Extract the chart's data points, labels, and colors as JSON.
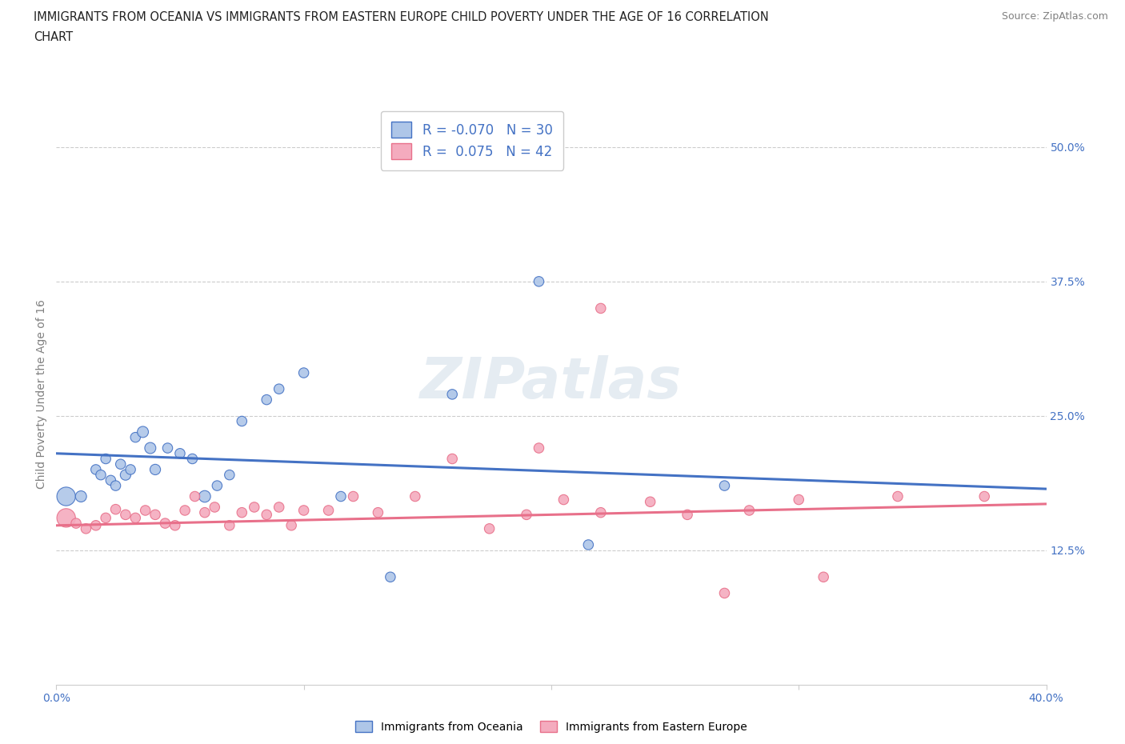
{
  "title_line1": "IMMIGRANTS FROM OCEANIA VS IMMIGRANTS FROM EASTERN EUROPE CHILD POVERTY UNDER THE AGE OF 16 CORRELATION",
  "title_line2": "CHART",
  "source": "Source: ZipAtlas.com",
  "ylabel": "Child Poverty Under the Age of 16",
  "xlim": [
    0.0,
    0.4
  ],
  "ylim": [
    0.0,
    0.54
  ],
  "xticks": [
    0.0,
    0.1,
    0.2,
    0.3,
    0.4
  ],
  "xticklabels": [
    "0.0%",
    "",
    "",
    "",
    "40.0%"
  ],
  "yticks": [
    0.125,
    0.25,
    0.375,
    0.5
  ],
  "yticklabels": [
    "12.5%",
    "25.0%",
    "37.5%",
    "50.0%"
  ],
  "grid_yticks": [
    0.125,
    0.25,
    0.375,
    0.5
  ],
  "R_blue": -0.07,
  "N_blue": 30,
  "R_pink": 0.075,
  "N_pink": 42,
  "blue_color": "#aec6e8",
  "pink_color": "#f4abbe",
  "line_blue": "#4472c4",
  "line_pink": "#e8708a",
  "watermark_text": "ZIPatlas",
  "blue_line_y0": 0.215,
  "blue_line_y1": 0.182,
  "pink_line_y0": 0.148,
  "pink_line_y1": 0.168,
  "blue_scatter_x": [
    0.004,
    0.01,
    0.016,
    0.018,
    0.02,
    0.022,
    0.024,
    0.026,
    0.028,
    0.03,
    0.032,
    0.035,
    0.038,
    0.04,
    0.045,
    0.05,
    0.055,
    0.06,
    0.065,
    0.07,
    0.075,
    0.085,
    0.09,
    0.1,
    0.115,
    0.135,
    0.16,
    0.195,
    0.215,
    0.27
  ],
  "blue_scatter_y": [
    0.175,
    0.175,
    0.2,
    0.195,
    0.21,
    0.19,
    0.185,
    0.205,
    0.195,
    0.2,
    0.23,
    0.235,
    0.22,
    0.2,
    0.22,
    0.215,
    0.21,
    0.175,
    0.185,
    0.195,
    0.245,
    0.265,
    0.275,
    0.29,
    0.175,
    0.1,
    0.27,
    0.375,
    0.13,
    0.185
  ],
  "blue_scatter_s": [
    280,
    100,
    80,
    80,
    80,
    80,
    80,
    80,
    90,
    80,
    80,
    100,
    100,
    90,
    80,
    80,
    80,
    110,
    80,
    80,
    80,
    80,
    80,
    80,
    80,
    80,
    80,
    80,
    80,
    80
  ],
  "pink_scatter_x": [
    0.004,
    0.008,
    0.012,
    0.016,
    0.02,
    0.024,
    0.028,
    0.032,
    0.036,
    0.04,
    0.044,
    0.048,
    0.052,
    0.056,
    0.06,
    0.064,
    0.07,
    0.075,
    0.08,
    0.085,
    0.09,
    0.095,
    0.1,
    0.11,
    0.12,
    0.13,
    0.145,
    0.16,
    0.175,
    0.19,
    0.205,
    0.22,
    0.24,
    0.255,
    0.28,
    0.3,
    0.22,
    0.27,
    0.31,
    0.34,
    0.195,
    0.375
  ],
  "pink_scatter_y": [
    0.155,
    0.15,
    0.145,
    0.148,
    0.155,
    0.163,
    0.158,
    0.155,
    0.162,
    0.158,
    0.15,
    0.148,
    0.162,
    0.175,
    0.16,
    0.165,
    0.148,
    0.16,
    0.165,
    0.158,
    0.165,
    0.148,
    0.162,
    0.162,
    0.175,
    0.16,
    0.175,
    0.21,
    0.145,
    0.158,
    0.172,
    0.16,
    0.17,
    0.158,
    0.162,
    0.172,
    0.35,
    0.085,
    0.1,
    0.175,
    0.22,
    0.175
  ],
  "pink_scatter_s": [
    280,
    80,
    80,
    80,
    80,
    80,
    80,
    80,
    80,
    80,
    80,
    80,
    80,
    80,
    80,
    80,
    80,
    80,
    80,
    80,
    80,
    80,
    80,
    80,
    80,
    80,
    80,
    80,
    80,
    80,
    80,
    80,
    80,
    80,
    80,
    80,
    80,
    80,
    80,
    80,
    80,
    80
  ]
}
